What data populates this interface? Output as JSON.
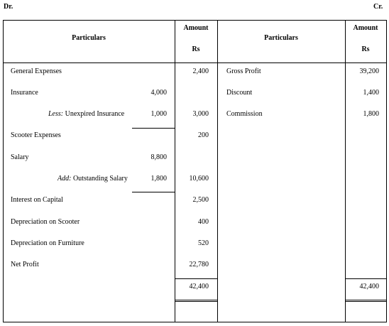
{
  "ledger": {
    "dr_label": "Dr.",
    "cr_label": "Cr.",
    "headers": {
      "particulars_left": "Particulars",
      "amount_left": "Amount",
      "rs_left": "Rs",
      "particulars_right": "Particulars",
      "amount_right": "Amount",
      "rs_right": "Rs"
    },
    "debit": {
      "general_expenses": {
        "label": "General Expenses",
        "amount": "2,400"
      },
      "insurance": {
        "label": "Insurance",
        "sub": "4,000"
      },
      "less_unexpired": {
        "prefix": "Less:",
        "label": " Unexpired Insurance",
        "sub": "1,000",
        "amount": "3,000"
      },
      "scooter_expenses": {
        "label": "Scooter Expenses",
        "amount": "200"
      },
      "salary": {
        "label": "Salary",
        "sub": "8,800"
      },
      "add_outstanding": {
        "prefix": "Add:",
        "label": " Outstanding Salary",
        "sub": "1,800",
        "amount": "10,600"
      },
      "interest_on_capital": {
        "label": "Interest on Capital",
        "amount": "2,500"
      },
      "depreciation_scooter": {
        "label": "Depreciation on Scooter",
        "amount": "400"
      },
      "depreciation_furniture": {
        "label": "Depreciation on Furniture",
        "amount": "520"
      },
      "net_profit": {
        "label": "Net Profit",
        "amount": "22,780"
      },
      "total": "42,400"
    },
    "credit": {
      "gross_profit": {
        "label": "Gross Profit",
        "amount": "39,200"
      },
      "discount": {
        "label": "Discount",
        "amount": "1,400"
      },
      "commission": {
        "label": "Commission",
        "amount": "1,800"
      },
      "total": "42,400"
    }
  }
}
